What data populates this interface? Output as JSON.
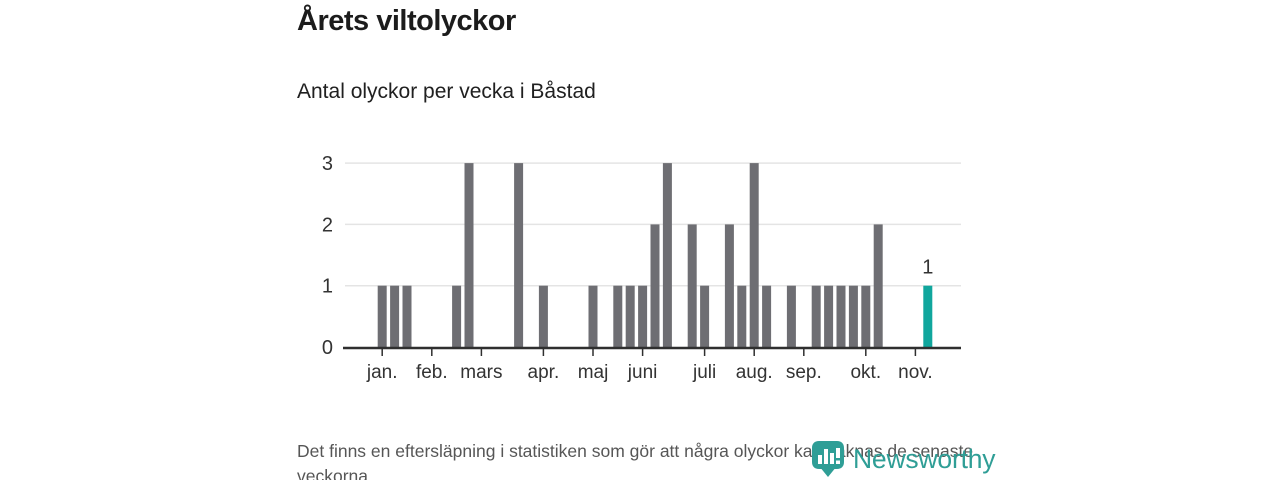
{
  "header": {
    "title": "Årets viltolyckor",
    "subtitle": "Antal olyckor per vecka i Båstad"
  },
  "chart_data": {
    "type": "bar",
    "title": "Årets viltolyckor",
    "subtitle": "Antal olyckor per vecka i Båstad",
    "xlabel": "",
    "ylabel": "",
    "ylim": [
      0,
      3
    ],
    "yticks": [
      0,
      1,
      2,
      3
    ],
    "grid": true,
    "legend": "none",
    "x_unit": "vecka",
    "x_domain_weeks": [
      0,
      50
    ],
    "bars": [
      {
        "week": 3,
        "value": 1
      },
      {
        "week": 4,
        "value": 1
      },
      {
        "week": 5,
        "value": 1
      },
      {
        "week": 9,
        "value": 1
      },
      {
        "week": 10,
        "value": 3
      },
      {
        "week": 14,
        "value": 3
      },
      {
        "week": 16,
        "value": 1
      },
      {
        "week": 20,
        "value": 1
      },
      {
        "week": 22,
        "value": 1
      },
      {
        "week": 23,
        "value": 1
      },
      {
        "week": 24,
        "value": 1
      },
      {
        "week": 25,
        "value": 2
      },
      {
        "week": 26,
        "value": 3
      },
      {
        "week": 28,
        "value": 2
      },
      {
        "week": 29,
        "value": 1
      },
      {
        "week": 31,
        "value": 2
      },
      {
        "week": 32,
        "value": 1
      },
      {
        "week": 33,
        "value": 3
      },
      {
        "week": 34,
        "value": 1
      },
      {
        "week": 36,
        "value": 1
      },
      {
        "week": 38,
        "value": 1
      },
      {
        "week": 39,
        "value": 1
      },
      {
        "week": 40,
        "value": 1
      },
      {
        "week": 41,
        "value": 1
      },
      {
        "week": 42,
        "value": 1
      },
      {
        "week": 43,
        "value": 2
      },
      {
        "week": 47,
        "value": 1,
        "highlight": true,
        "label": "1"
      }
    ],
    "month_ticks": [
      {
        "week": 3,
        "label": "jan."
      },
      {
        "week": 7,
        "label": "feb."
      },
      {
        "week": 11,
        "label": "mars"
      },
      {
        "week": 16,
        "label": "apr."
      },
      {
        "week": 20,
        "label": "maj"
      },
      {
        "week": 24,
        "label": "juni"
      },
      {
        "week": 29,
        "label": "juli"
      },
      {
        "week": 33,
        "label": "aug."
      },
      {
        "week": 37,
        "label": "sep."
      },
      {
        "week": 42,
        "label": "okt."
      },
      {
        "week": 46,
        "label": "nov."
      }
    ],
    "colors": {
      "bar": "#6e6e73",
      "highlight_bar": "#10a69d",
      "gridline": "#e4e4e4",
      "baseline": "#2f2f2f",
      "axis_text": "#333333"
    }
  },
  "footer": {
    "note": "Det finns en eftersläpning i statistiken som gör att några olyckor kan saknas de senaste veckorna."
  },
  "logo": {
    "text": "Newsworthy",
    "color": "#2f9e96",
    "icon": "newsworthy-pin-barchart-icon"
  }
}
